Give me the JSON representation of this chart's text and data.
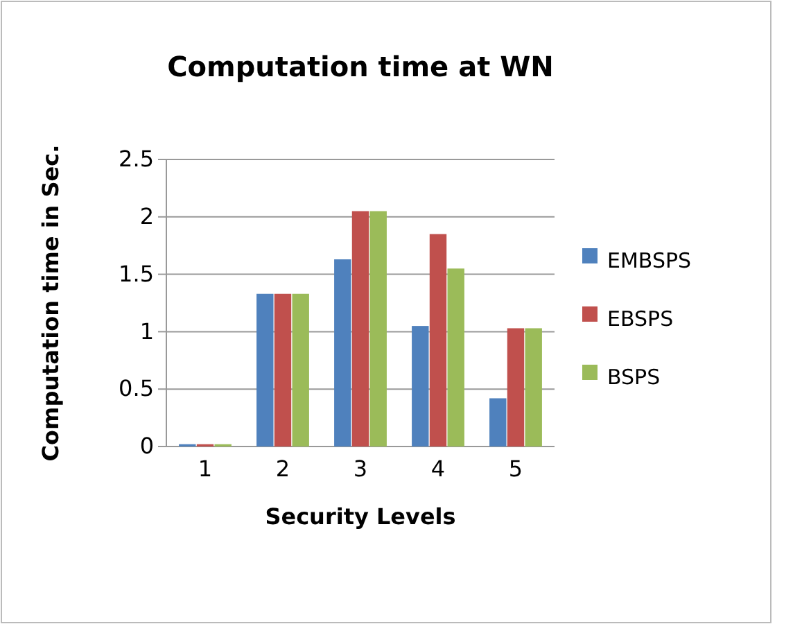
{
  "chart_data": {
    "type": "bar",
    "title": "Computation time at WN",
    "xlabel": "Security Levels",
    "ylabel": "Computation time in Sec.",
    "categories": [
      "1",
      "2",
      "3",
      "4",
      "5"
    ],
    "series": [
      {
        "name": "EMBSPS",
        "color": "#4f81bd",
        "values": [
          0.02,
          1.33,
          1.63,
          1.05,
          0.42
        ]
      },
      {
        "name": "EBSPS",
        "color": "#c0504d",
        "values": [
          0.02,
          1.33,
          2.05,
          1.85,
          1.03
        ]
      },
      {
        "name": "BSPS",
        "color": "#9bbb59",
        "values": [
          0.02,
          1.33,
          2.05,
          1.55,
          1.03
        ]
      }
    ],
    "ylim": [
      0,
      2.5
    ],
    "yticks": [
      0,
      0.5,
      1,
      1.5,
      2,
      2.5
    ],
    "grid": "y",
    "legend": "right"
  }
}
